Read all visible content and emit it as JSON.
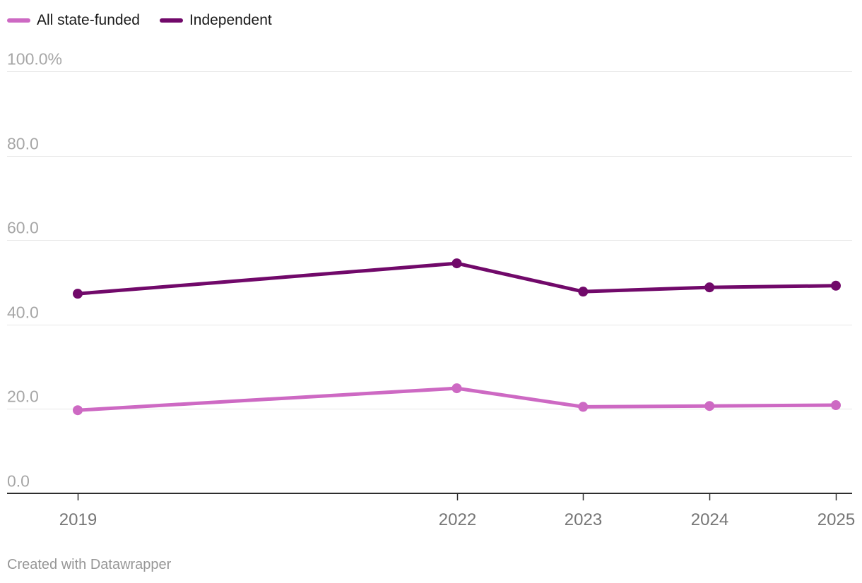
{
  "legend": {
    "items": [
      {
        "label": "All state-funded",
        "color": "#cd69c3"
      },
      {
        "label": "Independent",
        "color": "#71096a"
      }
    ]
  },
  "footer": {
    "credit": "Created with Datawrapper"
  },
  "chart_data": {
    "type": "line",
    "x": [
      2019,
      2022,
      2023,
      2024,
      2025
    ],
    "x_tick_labels": [
      "2019",
      "2022",
      "2023",
      "2024",
      "2025"
    ],
    "series": [
      {
        "name": "All state-funded",
        "color": "#cd69c3",
        "values": [
          19.7,
          24.9,
          20.5,
          20.7,
          20.9
        ]
      },
      {
        "name": "Independent",
        "color": "#71096a",
        "values": [
          47.3,
          54.5,
          47.8,
          48.8,
          49.2
        ]
      }
    ],
    "title": "",
    "xlabel": "",
    "ylabel": "",
    "ylim": [
      0,
      100
    ],
    "xlim": [
      2019,
      2025
    ],
    "y_ticks": [
      0,
      20,
      40,
      60,
      80,
      100
    ],
    "y_tick_labels": [
      "0.0",
      "20.0",
      "40.0",
      "60.0",
      "80.0",
      "100.0%"
    ],
    "grid": "horizontal",
    "legend_position": "top-left",
    "point_markers": true,
    "colors": {
      "grid": "#e7e7e7",
      "axis": "#2e2e2e",
      "y_tick_text": "#a6a6a6",
      "x_tick_text": "#767676"
    }
  }
}
